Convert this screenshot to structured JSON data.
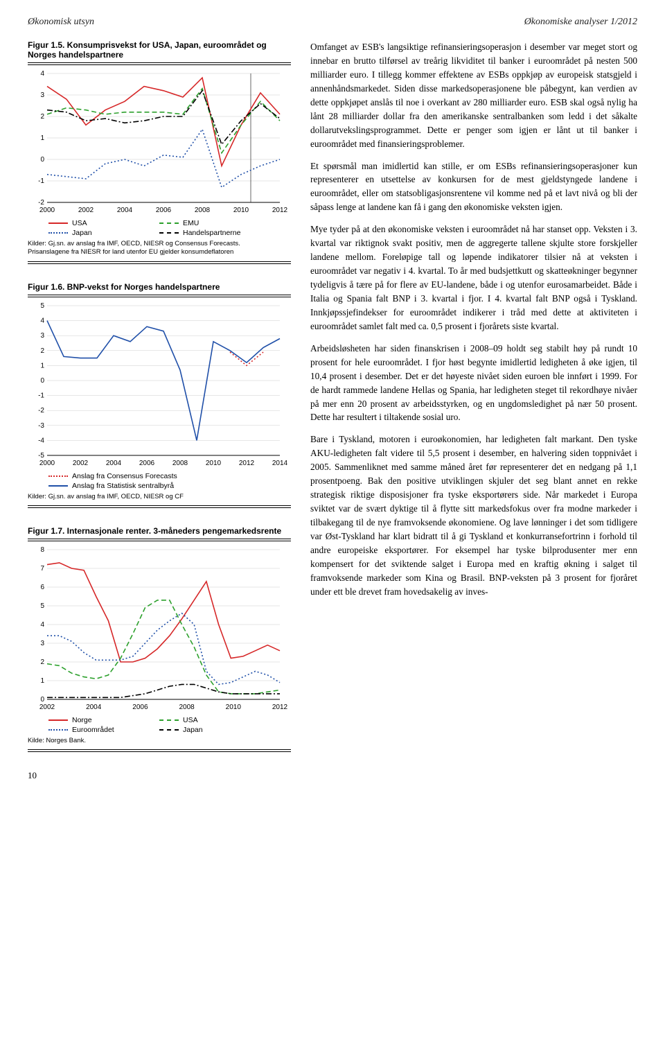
{
  "header": {
    "left": "Økonomisk utsyn",
    "right": "Økonomiske analyser 1/2012"
  },
  "page_number": "10",
  "fig15": {
    "title": "Figur 1.5. Konsumprisvekst for USA, Japan, euroområdet og Norges handelspartnere",
    "yticks": [
      -2,
      -1,
      0,
      1,
      2,
      3,
      4
    ],
    "xticks": [
      2000,
      2002,
      2004,
      2006,
      2008,
      2010,
      2012
    ],
    "legend": [
      {
        "label": "USA",
        "color": "#d62728",
        "style": "solid"
      },
      {
        "label": "EMU",
        "color": "#2ca02c",
        "style": "dash"
      },
      {
        "label": "Japan",
        "color": "#1f4fa8",
        "style": "dot"
      },
      {
        "label": "Handelspartnerne",
        "color": "#000000",
        "style": "dashdot"
      }
    ],
    "series": {
      "USA": [
        3.4,
        2.8,
        1.6,
        2.3,
        2.7,
        3.4,
        3.2,
        2.9,
        3.8,
        -0.3,
        1.6,
        3.1,
        2.1
      ],
      "EMU": [
        2.1,
        2.4,
        2.3,
        2.1,
        2.2,
        2.2,
        2.2,
        2.1,
        3.3,
        0.3,
        1.6,
        2.7,
        1.8
      ],
      "Japan": [
        -0.7,
        -0.8,
        -0.9,
        -0.2,
        0.0,
        -0.3,
        0.2,
        0.1,
        1.4,
        -1.3,
        -0.7,
        -0.3,
        0.0
      ],
      "Handels": [
        2.3,
        2.2,
        1.8,
        1.9,
        1.7,
        1.8,
        2.0,
        2.0,
        3.2,
        0.7,
        1.8,
        2.6,
        1.9
      ]
    },
    "source": "Kilder: Gj.sn. av anslag fra IMF, OECD, NIESR og Consensus Forecasts.\nPrisanslagene fra NIESR for land utenfor EU gjelder konsumdeflatoren",
    "colors": {
      "USA": "#d62728",
      "EMU": "#2ca02c",
      "Japan": "#1f4fa8",
      "Handels": "#000000"
    }
  },
  "fig16": {
    "title": "Figur 1.6. BNP-vekst for Norges handelspartnere",
    "yticks": [
      -5,
      -4,
      -3,
      -2,
      -1,
      0,
      1,
      2,
      3,
      4,
      5
    ],
    "xticks": [
      2000,
      2002,
      2004,
      2006,
      2008,
      2010,
      2012,
      2014
    ],
    "legend": [
      {
        "label": "Anslag fra Consensus Forecasts",
        "color": "#d62728",
        "style": "dot"
      },
      {
        "label": "Anslag fra Statistisk sentralbyrå",
        "color": "#1f4fa8",
        "style": "solid"
      }
    ],
    "series": {
      "SSB": [
        4.0,
        1.6,
        1.5,
        1.5,
        3.0,
        2.6,
        3.6,
        3.3,
        0.7,
        -4.0,
        2.6,
        2.0,
        1.2,
        2.2,
        2.8
      ],
      "CF": [
        null,
        null,
        null,
        null,
        null,
        null,
        null,
        null,
        null,
        null,
        null,
        1.9,
        1.0,
        1.9,
        null
      ]
    },
    "colors": {
      "SSB": "#1f4fa8",
      "CF": "#d62728"
    },
    "source": "Kilder: Gj.sn. av anslag fra IMF, OECD, NIESR og CF"
  },
  "fig17": {
    "title": "Figur 1.7. Internasjonale renter. 3-måneders pengemarkedsrente",
    "yticks": [
      0,
      1,
      2,
      3,
      4,
      5,
      6,
      7,
      8
    ],
    "xticks": [
      2002,
      2004,
      2006,
      2008,
      2010,
      2012
    ],
    "legend": [
      {
        "label": "Norge",
        "color": "#d62728",
        "style": "solid"
      },
      {
        "label": "USA",
        "color": "#2ca02c",
        "style": "dash"
      },
      {
        "label": "Euroområdet",
        "color": "#1f4fa8",
        "style": "dot"
      },
      {
        "label": "Japan",
        "color": "#000000",
        "style": "dashdot"
      }
    ],
    "series": {
      "Norge": [
        7.2,
        7.3,
        7.0,
        6.9,
        5.5,
        4.2,
        2.0,
        2.0,
        2.2,
        2.7,
        3.4,
        4.3,
        5.3,
        6.3,
        4.0,
        2.2,
        2.3,
        2.6,
        2.9,
        2.6
      ],
      "USA": [
        1.9,
        1.8,
        1.4,
        1.2,
        1.1,
        1.3,
        2.2,
        3.5,
        4.9,
        5.3,
        5.3,
        4.0,
        2.8,
        1.3,
        0.4,
        0.3,
        0.3,
        0.3,
        0.4,
        0.5
      ],
      "Euro": [
        3.4,
        3.4,
        3.1,
        2.5,
        2.1,
        2.1,
        2.1,
        2.3,
        3.0,
        3.7,
        4.2,
        4.6,
        4.0,
        1.5,
        0.8,
        0.9,
        1.2,
        1.5,
        1.3,
        0.9
      ],
      "Japan": [
        0.1,
        0.1,
        0.1,
        0.1,
        0.1,
        0.1,
        0.1,
        0.2,
        0.3,
        0.5,
        0.7,
        0.8,
        0.8,
        0.6,
        0.4,
        0.3,
        0.3,
        0.3,
        0.3,
        0.3
      ]
    },
    "colors": {
      "Norge": "#d62728",
      "USA": "#2ca02c",
      "Euro": "#1f4fa8",
      "Japan": "#000000"
    },
    "source": "Kilde: Norges Bank."
  },
  "body": {
    "p1": "Omfanget av ESB's langsiktige refinansieringsoperasjon i desember var meget stort og innebar en brutto tilførsel av treårig likviditet til banker i euroområdet på nesten 500 milliarder euro. I tillegg kommer effektene av ESBs oppkjøp av europeisk statsgjeld i annenhåndsmarkedet. Siden disse markedsoperasjonene ble påbegynt, kan verdien av dette oppkjøpet anslås til noe i overkant av 280 milliarder euro. ESB skal også nylig ha lånt 28 milliarder dollar fra den amerikanske sentralbanken som ledd i det såkalte dollarutvekslingsprogrammet. Dette er penger som igjen er lånt ut til banker i euroområdet med finansieringsproblemer.",
    "p2": "Et spørsmål man imidlertid kan stille, er om ESBs refinansieringsoperasjoner kun representerer en utsettelse av konkursen for de mest gjeldstyngede landene i euroområdet, eller om statsobligasjonsrentene vil komme ned på et lavt nivå og bli der såpass lenge at landene kan få i gang den økonomiske veksten igjen.",
    "p3": "Mye tyder på at den økonomiske veksten i euroområdet nå har stanset opp. Veksten i 3. kvartal var riktignok svakt positiv, men de aggregerte tallene skjulte store forskjeller landene mellom. Foreløpige tall og løpende indikatorer tilsier nå at veksten i euroområdet var negativ i 4. kvartal. To år med budsjettkutt og skatteøkninger begynner tydeligvis å tære på for flere av EU-landene, både i og utenfor eurosamarbeidet. Både i Italia og Spania falt BNP i 3. kvartal i fjor. I 4. kvartal falt BNP også i Tyskland. Innkjøpssjefindekser for euroområdet indikerer i tråd med dette at aktiviteten i euroområdet samlet falt med ca. 0,5 prosent i fjorårets siste kvartal.",
    "p4": "Arbeidsløsheten har siden finanskrisen i 2008–09 holdt seg stabilt høy på rundt 10 prosent for hele euroområdet. I fjor høst begynte imidlertid ledigheten å øke igjen, til 10,4 prosent i desember. Det er det høyeste nivået siden euroen ble innført i 1999. For de hardt rammede landene Hellas og Spania, har ledigheten steget til rekordhøye nivåer på mer enn 20 prosent av arbeidsstyrken, og en ungdomsledighet på nær 50 prosent. Dette har resultert i tiltakende sosial uro.",
    "p5": "Bare i Tyskland, motoren i euroøkonomien, har ledigheten falt markant. Den tyske AKU-ledigheten falt videre til 5,5 prosent i desember, en halvering siden toppnivået i 2005. Sammenliknet med samme måned året før representerer det en nedgang på 1,1 prosentpoeng. Bak den positive utviklingen skjuler det seg blant annet en rekke strategisk riktige disposisjoner fra tyske eksportørers side. Når markedet i Europa sviktet var de svært dyktige til å flytte sitt markedsfokus over fra modne markeder i tilbakegang til de nye framvoksende økonomiene. Og lave lønninger i det som tidligere var Øst-Tyskland har klart bidratt til å gi Tyskland et konkurransefortrinn i forhold til andre europeiske eksportører. For eksempel har tyske bilprodusenter mer enn kompensert for det sviktende salget i Europa med en kraftig økning i salget til framvoksende markeder som Kina og Brasil. BNP-veksten på 3 prosent for fjoråret under ett ble drevet fram hovedsakelig av inves-"
  }
}
